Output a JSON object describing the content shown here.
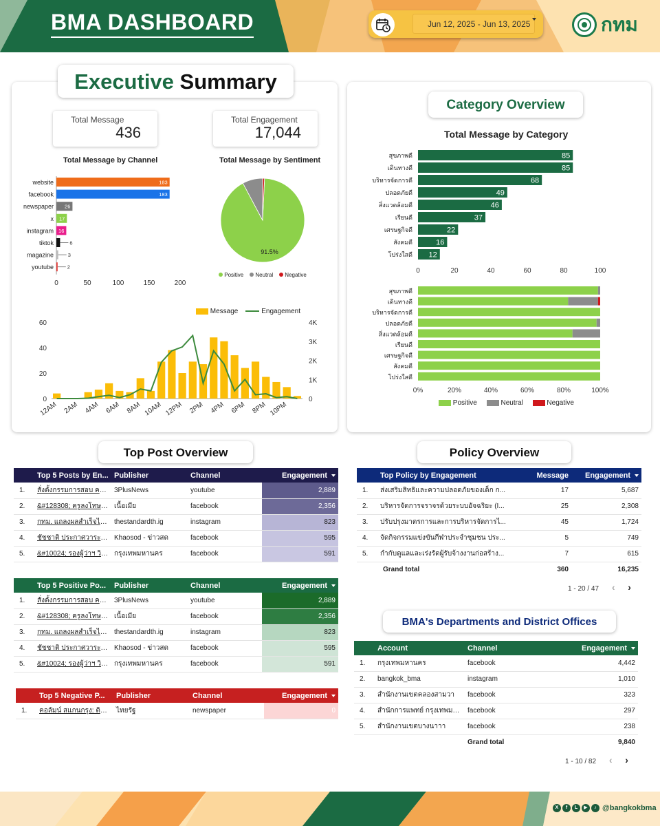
{
  "header": {
    "title": "BMA DASHBOARD",
    "date_range": "Jun 12, 2025 - Jun 13, 2025",
    "logo_text": "กทม"
  },
  "exec": {
    "title_part1": "Executive",
    "title_part2": "Summary",
    "kpis": [
      {
        "label": "Total Message",
        "value": "436"
      },
      {
        "label": "Total Engagement",
        "value": "17,044"
      }
    ],
    "channel_title": "Total Message by Channel",
    "sentiment_title": "Total Message by Sentiment",
    "pie_label": "91.5%",
    "legend": [
      "Positive",
      "Neutral",
      "Negative"
    ],
    "timeline_legend": [
      "Message",
      "Engagement"
    ]
  },
  "category": {
    "title": "Category Overview",
    "chart_title": "Total Message by Category",
    "legend": [
      "Positive",
      "Neutral",
      "Negative"
    ]
  },
  "top_post": {
    "title": "Top Post Overview",
    "headers": [
      "Top 5 Posts by En...",
      "Publisher",
      "Channel",
      "Engagement"
    ],
    "rows": [
      {
        "n": "1.",
        "post": "สั่งตั้งกรรมการสอบ ครูลงโ...",
        "pub": "3PlusNews",
        "ch": "youtube",
        "eng": "2,889"
      },
      {
        "n": "2.",
        "post": "&#128308; ครูลงโทษนั...",
        "pub": "เนื้อเมีย",
        "ch": "facebook",
        "eng": "2,356"
      },
      {
        "n": "3.",
        "post": "กทม. แถลงผลสำเร็จไฟจรา...",
        "pub": "thestandardth.ig",
        "ch": "instagram",
        "eng": "823"
      },
      {
        "n": "4.",
        "post": "ชัชชาติ ประกาศวาระแห่งก...",
        "pub": "Khaosod - ข่าวสด",
        "ch": "facebook",
        "eng": "595"
      },
      {
        "n": "5.",
        "post": "&#10024; รองผู้ว่าฯ วิศ...",
        "pub": "กรุงเทพมหานคร",
        "ch": "facebook",
        "eng": "591"
      }
    ]
  },
  "top_positive": {
    "headers": [
      "Top 5 Positive Po...",
      "Publisher",
      "Channel",
      "Engagement"
    ],
    "rows": [
      {
        "n": "1.",
        "post": "สั่งตั้งกรรมการสอบ ครูลงโ...",
        "pub": "3PlusNews",
        "ch": "youtube",
        "eng": "2,889"
      },
      {
        "n": "2.",
        "post": "&#128308; ครูลงโทษนั...",
        "pub": "เนื้อเมีย",
        "ch": "facebook",
        "eng": "2,356"
      },
      {
        "n": "3.",
        "post": "กทม. แถลงผลสำเร็จไฟจรา...",
        "pub": "thestandardth.ig",
        "ch": "instagram",
        "eng": "823"
      },
      {
        "n": "4.",
        "post": "ชัชชาติ ประกาศวาระแห่งก...",
        "pub": "Khaosod - ข่าวสด",
        "ch": "facebook",
        "eng": "595"
      },
      {
        "n": "5.",
        "post": "&#10024; รองผู้ว่าฯ วิศ...",
        "pub": "กรุงเทพมหานคร",
        "ch": "facebook",
        "eng": "591"
      }
    ]
  },
  "top_negative": {
    "headers": [
      "Top 5 Negative P...",
      "Publisher",
      "Channel",
      "Engagement"
    ],
    "rows": [
      {
        "n": "1.",
        "post": "คอลัมน์ สแกนกรุง: ติด...ป...",
        "pub": "ไทยรัฐ",
        "ch": "newspaper",
        "eng": "0"
      }
    ]
  },
  "policy": {
    "title": "Policy Overview",
    "headers": [
      "Top Policy by Engagement",
      "Message",
      "Engagement"
    ],
    "rows": [
      {
        "n": "1.",
        "name": "ส่งเสริมสิทธิและความปลอดภัยของเด็ก ก...",
        "msg": "17",
        "eng": "5,687"
      },
      {
        "n": "2.",
        "name": "บริหารจัดการจราจรด้วยระบบอัจฉริยะ (I...",
        "msg": "25",
        "eng": "2,308"
      },
      {
        "n": "3.",
        "name": "ปรับปรุงมาตรการและการบริหารจัดการไ...",
        "msg": "45",
        "eng": "1,724"
      },
      {
        "n": "4.",
        "name": "จัดกิจกรรมแข่งขันกีฬาประจำชุมชน ประ...",
        "msg": "5",
        "eng": "749"
      },
      {
        "n": "5.",
        "name": "กำกับดูแลและเร่งรัดผู้รับจ้างงานก่อสร้าง...",
        "msg": "7",
        "eng": "615"
      }
    ],
    "total_label": "Grand total",
    "total_msg": "360",
    "total_eng": "16,235",
    "pager": "1 - 20 / 47"
  },
  "departments": {
    "title": "BMA's Departments and District Offices",
    "headers": [
      "Account",
      "Channel",
      "Engagement"
    ],
    "rows": [
      {
        "n": "1.",
        "acc": "กรุงเทพมหานคร",
        "ch": "facebook",
        "eng": "4,442"
      },
      {
        "n": "2.",
        "acc": "bangkok_bma",
        "ch": "instagram",
        "eng": "1,010"
      },
      {
        "n": "3.",
        "acc": "สำนักงานเขตคลองสามวา",
        "ch": "facebook",
        "eng": "323"
      },
      {
        "n": "4.",
        "acc": "สำนักการแพทย์ กรุงเทพมหานคร",
        "ch": "facebook",
        "eng": "297"
      },
      {
        "n": "5.",
        "acc": "สำนักงานเขตบางนาาา",
        "ch": "facebook",
        "eng": "238"
      }
    ],
    "total_label": "Grand total",
    "total_eng": "9,840",
    "pager": "1 - 10 / 82"
  },
  "footer": {
    "handle": "@bangkokbma",
    "social_icons": [
      "x-icon",
      "facebook-icon",
      "line-icon",
      "youtube-icon",
      "tiktok-icon"
    ]
  },
  "colors": {
    "green_dark": "#1b6b43",
    "yellow": "#f6c343",
    "orange": "#f5a04a",
    "positive": "#8dd14a",
    "neutral": "#8c8c8c",
    "negative": "#d0181c",
    "bar_yellow": "#fbbd08"
  },
  "chart_data": [
    {
      "type": "bar",
      "title": "Total Message by Channel",
      "categories": [
        "website",
        "facebook",
        "newspaper",
        "x",
        "instagram",
        "tiktok",
        "magazine",
        "youtube"
      ],
      "values": [
        183,
        183,
        26,
        17,
        16,
        6,
        3,
        2
      ],
      "colors": [
        "#ef6c1a",
        "#1a73e8",
        "#777777",
        "#8dd14a",
        "#e91e8c",
        "#111111",
        "#bbbbbb",
        "#e53935"
      ],
      "xlim": [
        0,
        200
      ],
      "xticks": [
        0,
        50,
        100,
        150,
        200
      ]
    },
    {
      "type": "pie",
      "title": "Total Message by Sentiment",
      "labels": [
        "Positive",
        "Neutral",
        "Negative"
      ],
      "values": [
        91.5,
        7.8,
        0.7
      ],
      "colors": [
        "#8dd14a",
        "#8c8c8c",
        "#d0181c"
      ]
    },
    {
      "type": "bar",
      "title": "",
      "x": [
        "12AM",
        "1AM",
        "2AM",
        "3AM",
        "4AM",
        "5AM",
        "6AM",
        "7AM",
        "8AM",
        "9AM",
        "10AM",
        "11AM",
        "12PM",
        "1PM",
        "2PM",
        "3PM",
        "4PM",
        "5PM",
        "6PM",
        "7PM",
        "8PM",
        "9PM",
        "10PM",
        "11PM"
      ],
      "xticks": [
        "12AM",
        "2AM",
        "4AM",
        "6AM",
        "8AM",
        "10AM",
        "12PM",
        "2PM",
        "4PM",
        "6PM",
        "8PM",
        "10PM"
      ],
      "series": [
        {
          "name": "Message",
          "kind": "bar",
          "axis": "left",
          "values": [
            4,
            0,
            0,
            5,
            7,
            12,
            6,
            5,
            16,
            6,
            29,
            38,
            20,
            29,
            27,
            48,
            45,
            34,
            24,
            29,
            17,
            13,
            9,
            2
          ]
        },
        {
          "name": "Engagement",
          "kind": "line",
          "axis": "right",
          "values": [
            0,
            0,
            0,
            20,
            100,
            170,
            50,
            200,
            500,
            400,
            1900,
            2500,
            2700,
            3300,
            800,
            2500,
            1800,
            400,
            1000,
            200,
            250,
            50,
            100,
            0
          ]
        }
      ],
      "ylim_left": [
        0,
        60
      ],
      "yticks_left": [
        0,
        20,
        40,
        60
      ],
      "ylim_right": [
        0,
        4000
      ],
      "yticks_right": [
        "0",
        "1K",
        "2K",
        "3K",
        "4K"
      ]
    },
    {
      "type": "bar",
      "title": "Total Message by Category",
      "categories": [
        "สุขภาพดี",
        "เดินทางดี",
        "บริหารจัดการดี",
        "ปลอดภัยดี",
        "สิ่งแวดล้อมดี",
        "เรียนดี",
        "เศรษฐกิจดี",
        "สังคมดี",
        "โปร่งใสดี"
      ],
      "values": [
        85,
        85,
        68,
        49,
        46,
        37,
        22,
        16,
        12
      ],
      "xlim": [
        0,
        100
      ],
      "xticks": [
        0,
        20,
        40,
        60,
        80,
        100
      ]
    },
    {
      "type": "bar",
      "title": "",
      "stacked": true,
      "percent": true,
      "categories": [
        "สุขภาพดี",
        "เดินทางดี",
        "บริหารจัดการดี",
        "ปลอดภัยดี",
        "สิ่งแวดล้อมดี",
        "เรียนดี",
        "เศรษฐกิจดี",
        "สังคมดี",
        "โปร่งใสดี"
      ],
      "series": [
        {
          "name": "Positive",
          "values": [
            98.8,
            82.4,
            100,
            98,
            84.8,
            100,
            100,
            100,
            100
          ]
        },
        {
          "name": "Neutral",
          "values": [
            1.2,
            16.4,
            0,
            2,
            15.2,
            0,
            0,
            0,
            0
          ]
        },
        {
          "name": "Negative",
          "values": [
            0,
            1.2,
            0,
            0,
            0,
            0,
            0,
            0,
            0
          ]
        }
      ],
      "xticks": [
        "0%",
        "20%",
        "40%",
        "60%",
        "80%",
        "100%"
      ]
    }
  ]
}
